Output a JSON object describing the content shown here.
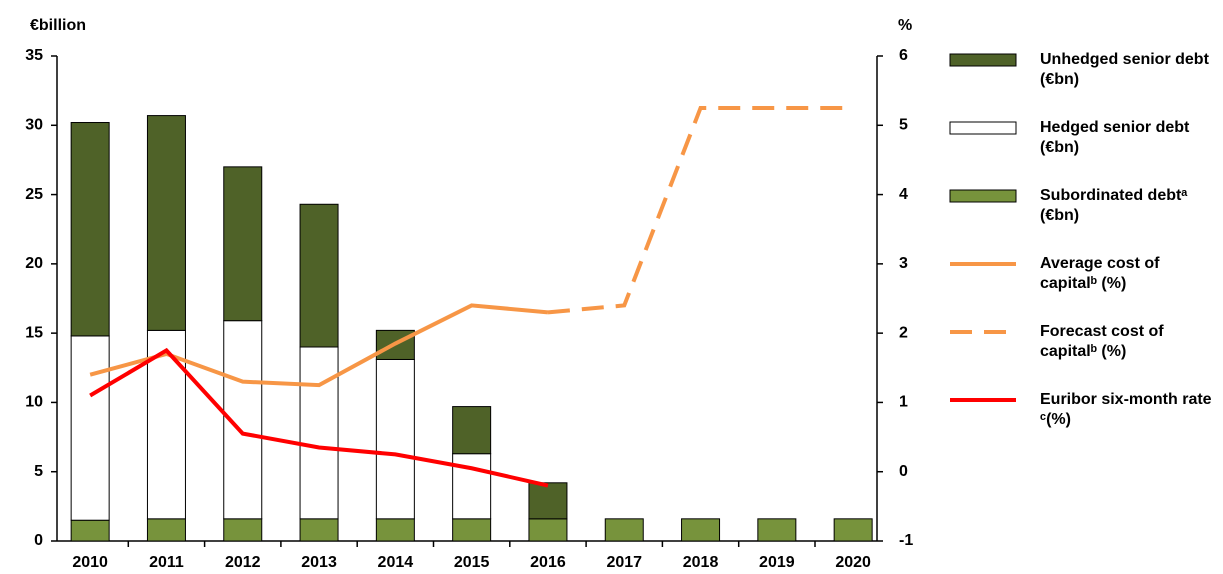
{
  "chart_data": {
    "type": "bar_line",
    "y_label": "€billion",
    "y2_label": "%",
    "categories": [
      "2010",
      "2011",
      "2012",
      "2013",
      "2014",
      "2015",
      "2016",
      "2017",
      "2018",
      "2019",
      "2020"
    ],
    "series": [
      {
        "name": "Unhedged senior debt (€bn)",
        "kind": "stack",
        "color": "#4f6228",
        "values": [
          15.4,
          15.5,
          11.1,
          10.3,
          2.1,
          3.4,
          2.6,
          0,
          0,
          0,
          0
        ],
        "stack_order": 3
      },
      {
        "name": "Hedged senior debt (€bn)",
        "kind": "stack",
        "color": "#ffffff",
        "values": [
          13.3,
          13.6,
          14.3,
          12.4,
          11.5,
          4.7,
          0,
          0,
          0,
          0,
          0
        ],
        "stack_order": 2
      },
      {
        "name": "Subordinated debtᵃ (€bn)",
        "kind": "stack",
        "color": "#77933c",
        "values": [
          1.5,
          1.6,
          1.6,
          1.6,
          1.6,
          1.6,
          1.6,
          1.6,
          1.6,
          1.6,
          1.6
        ],
        "stack_order": 1
      },
      {
        "name": "Average cost of capitalᵇ (%)",
        "kind": "line",
        "axis": "y2",
        "color": "#f79646",
        "dash": false,
        "values": [
          1.4,
          1.7,
          1.3,
          1.25,
          1.85,
          2.4,
          2.3,
          null,
          null,
          null,
          null
        ]
      },
      {
        "name": "Forecast cost of capitalᵇ (%)",
        "kind": "line",
        "axis": "y2",
        "color": "#f79646",
        "dash": true,
        "values": [
          null,
          null,
          null,
          null,
          null,
          null,
          2.3,
          2.4,
          5.25,
          5.25,
          5.25
        ]
      },
      {
        "name": "Euribor six-month rate ᶜ(%)",
        "kind": "line",
        "axis": "y2",
        "color": "#ff0000",
        "dash": false,
        "values": [
          1.1,
          1.75,
          0.55,
          0.35,
          0.25,
          0.05,
          -0.2,
          null,
          null,
          null,
          null
        ]
      }
    ],
    "ylim": [
      0,
      35
    ],
    "yticks": [
      0,
      5,
      10,
      15,
      20,
      25,
      30,
      35
    ],
    "y2lim": [
      -1,
      6
    ],
    "y2ticks": [
      -1,
      0,
      1,
      2,
      3,
      4,
      5,
      6
    ]
  }
}
